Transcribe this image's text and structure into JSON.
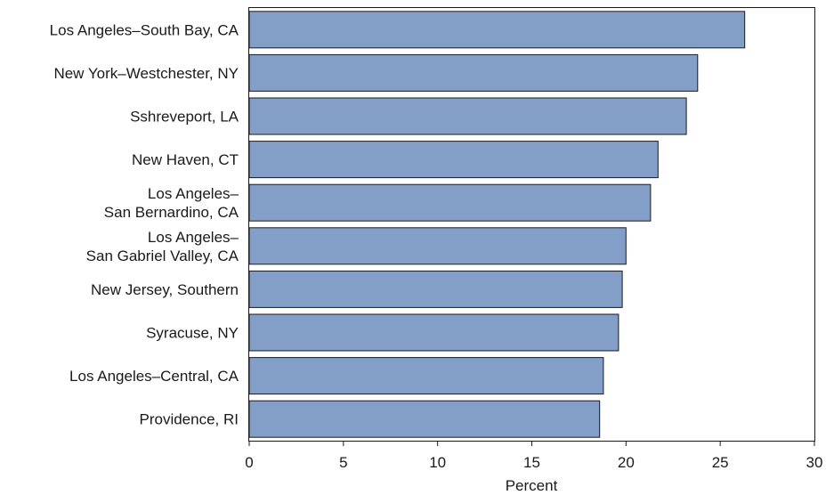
{
  "chart_data": {
    "type": "bar",
    "orientation": "horizontal",
    "categories": [
      [
        "Los Angeles–South Bay, CA"
      ],
      [
        "New York–Westchester, NY"
      ],
      [
        "Sshreveport, LA"
      ],
      [
        "New Haven, CT"
      ],
      [
        "Los Angeles–",
        "San Bernardino, CA"
      ],
      [
        "Los Angeles–",
        "San Gabriel Valley, CA"
      ],
      [
        "New Jersey, Southern"
      ],
      [
        "Syracuse, NY"
      ],
      [
        "Los Angeles–Central, CA"
      ],
      [
        "Providence, RI"
      ]
    ],
    "values": [
      26.3,
      23.8,
      23.2,
      21.7,
      21.3,
      20.0,
      19.8,
      19.6,
      18.8,
      18.6
    ],
    "xlabel": "Percent",
    "ylabel": "",
    "title": "",
    "xlim": [
      0,
      30
    ],
    "xticks": [
      "0",
      "5",
      "10",
      "15",
      "20",
      "25",
      "30"
    ],
    "grid": false,
    "legend": "none",
    "bar_color": "#839fc8",
    "bar_stroke": "#1a1a1a"
  }
}
